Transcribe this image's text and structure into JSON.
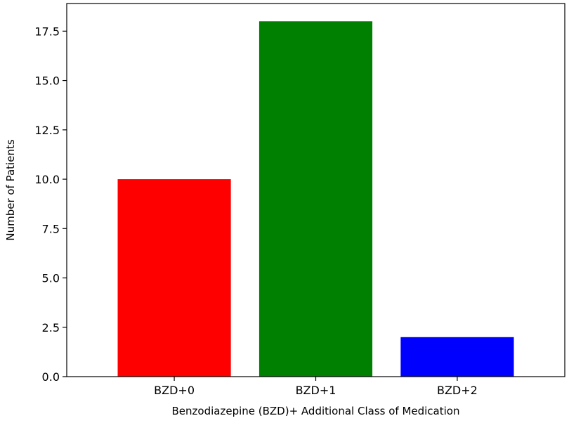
{
  "chart_data": {
    "type": "bar",
    "title": "",
    "xlabel": "Benzodiazepine (BZD)+ Additional Class of Medication",
    "ylabel": "Number of Patients",
    "categories": [
      "BZD+0",
      "BZD+1",
      "BZD+2"
    ],
    "values": [
      10,
      18,
      2
    ],
    "colors": [
      "#ff0000",
      "#008000",
      "#0000ff"
    ],
    "ylim": [
      0,
      18.9
    ],
    "yticks": [
      0.0,
      2.5,
      5.0,
      7.5,
      10.0,
      12.5,
      15.0,
      17.5
    ],
    "ytick_labels": [
      "0.0",
      "2.5",
      "5.0",
      "7.5",
      "10.0",
      "12.5",
      "15.0",
      "17.5"
    ],
    "grid": false,
    "legend": "none"
  }
}
